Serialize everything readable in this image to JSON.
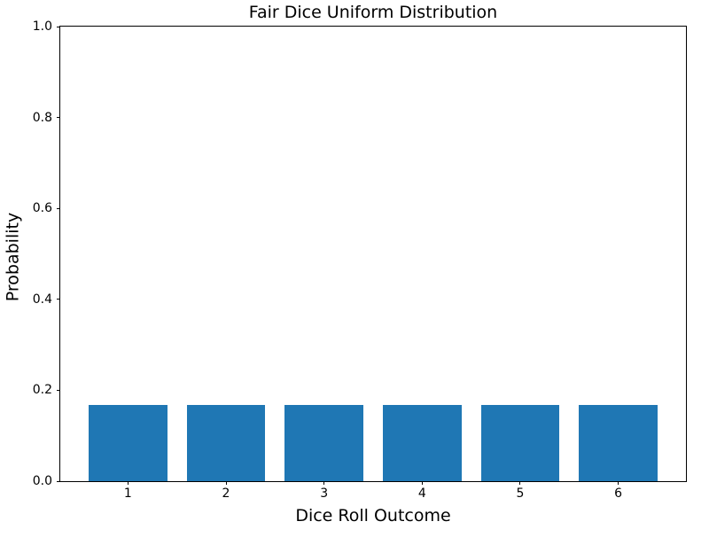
{
  "chart_data": {
    "type": "bar",
    "title": "Fair Dice Uniform Distribution",
    "xlabel": "Dice Roll Outcome",
    "ylabel": "Probability",
    "categories": [
      "1",
      "2",
      "3",
      "4",
      "5",
      "6"
    ],
    "x": [
      1,
      2,
      3,
      4,
      5,
      6
    ],
    "values": [
      0.1667,
      0.1667,
      0.1667,
      0.1667,
      0.1667,
      0.1667
    ],
    "bar_width": 0.8,
    "bar_color": "#1f77b4",
    "xlim": [
      0.31,
      6.69
    ],
    "ylim": [
      0.0,
      1.0
    ],
    "yticks": [
      {
        "label": "0.0",
        "value": 0.0
      },
      {
        "label": "0.2",
        "value": 0.2
      },
      {
        "label": "0.4",
        "value": 0.4
      },
      {
        "label": "0.6",
        "value": 0.6
      },
      {
        "label": "0.8",
        "value": 0.8
      },
      {
        "label": "1.0",
        "value": 1.0
      }
    ],
    "grid": false,
    "legend": "none"
  }
}
